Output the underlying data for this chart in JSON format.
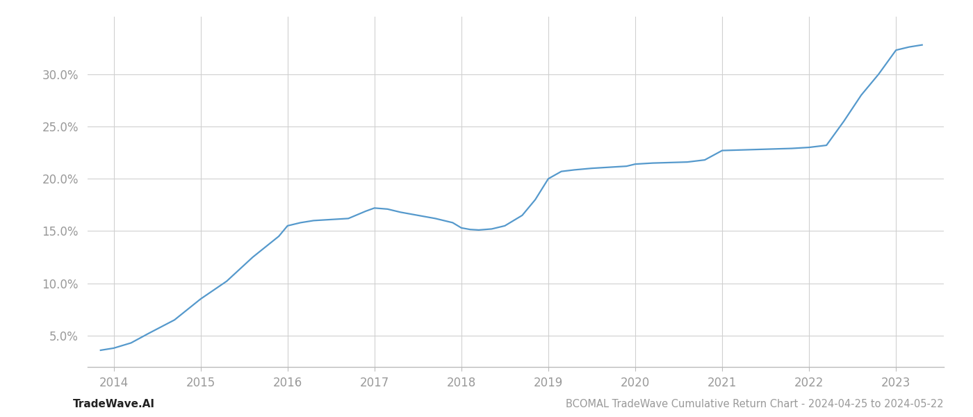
{
  "x_years": [
    2013.85,
    2014.0,
    2014.2,
    2014.4,
    2014.7,
    2015.0,
    2015.3,
    2015.6,
    2015.9,
    2016.0,
    2016.15,
    2016.3,
    2016.5,
    2016.7,
    2016.9,
    2017.0,
    2017.15,
    2017.3,
    2017.5,
    2017.7,
    2017.9,
    2018.0,
    2018.1,
    2018.2,
    2018.35,
    2018.5,
    2018.7,
    2018.85,
    2019.0,
    2019.15,
    2019.3,
    2019.5,
    2019.7,
    2019.9,
    2020.0,
    2020.2,
    2020.4,
    2020.6,
    2020.8,
    2021.0,
    2021.2,
    2021.4,
    2021.6,
    2021.8,
    2022.0,
    2022.1,
    2022.2,
    2022.4,
    2022.6,
    2022.8,
    2023.0,
    2023.15,
    2023.3
  ],
  "y_values": [
    3.6,
    3.8,
    4.3,
    5.2,
    6.5,
    8.5,
    10.2,
    12.5,
    14.5,
    15.5,
    15.8,
    16.0,
    16.1,
    16.2,
    16.9,
    17.2,
    17.1,
    16.8,
    16.5,
    16.2,
    15.8,
    15.3,
    15.15,
    15.1,
    15.2,
    15.5,
    16.5,
    18.0,
    20.0,
    20.7,
    20.85,
    21.0,
    21.1,
    21.2,
    21.4,
    21.5,
    21.55,
    21.6,
    21.8,
    22.7,
    22.75,
    22.8,
    22.85,
    22.9,
    23.0,
    23.1,
    23.2,
    25.5,
    28.0,
    30.0,
    32.3,
    32.6,
    32.8
  ],
  "line_color": "#5599cc",
  "line_width": 1.6,
  "background_color": "#ffffff",
  "grid_color": "#d0d0d0",
  "tick_color": "#999999",
  "yticks": [
    5.0,
    10.0,
    15.0,
    20.0,
    25.0,
    30.0
  ],
  "xticks": [
    2014,
    2015,
    2016,
    2017,
    2018,
    2019,
    2020,
    2021,
    2022,
    2023
  ],
  "xlim": [
    2013.7,
    2023.55
  ],
  "ylim": [
    2.0,
    35.5
  ],
  "footer_left": "TradeWave.AI",
  "footer_right": "BCOMAL TradeWave Cumulative Return Chart - 2024-04-25 to 2024-05-22",
  "footer_color": "#999999",
  "footer_left_color": "#222222"
}
